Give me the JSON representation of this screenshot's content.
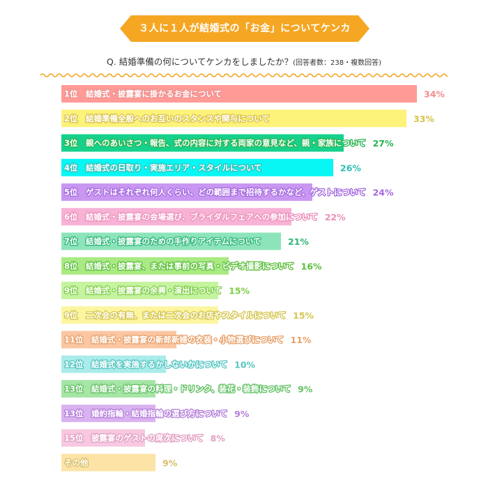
{
  "banner": {
    "text": "３人に１人が結婚式の「お金」についてケンカ"
  },
  "question": {
    "text": "Q. 結婚準備の何についてケンカをしましたか？",
    "note": "(回答者数：238・複数回答)"
  },
  "colors": {
    "banner": "#f5a623",
    "wavy_line": "#f5a623"
  },
  "chart_data": {
    "type": "bar",
    "orientation": "horizontal",
    "unit": "%",
    "xlim": [
      0,
      34
    ],
    "categories": [
      "1位　結婚式・披露宴に掛かるお金について",
      "2位　結婚準備全般へのお互いのスタンスや関与について",
      "3位　親へのあいさつ・報告、式の内容に対する両家の意見など、親・家族について",
      "4位　結婚式の日取り・実施エリア・スタイルについて",
      "5位　ゲストはそれぞれ何人くらい、どの範囲まで招待するかなど、ゲストについて",
      "6位　結婚式・披露宴の会場選び、ブライダルフェアへの参加について",
      "7位　結婚式・披露宴のための手作りアイテムについて",
      "8位　結婚式・披露宴、または事前の写真・ビデオ撮影について",
      "9位　結婚式・披露宴の余興・演出について",
      "9位　二次会の有無、または二次会のお店やスタイルについて",
      "11位　結婚式・披露宴の新郎新婦の衣装・小物選びについて",
      "12位　結婚式を実施するかしないかについて",
      "13位　結婚式・披露宴の料理・ドリンク、装花・装飾について",
      "13位　婚約指輪・結婚指輪の選び方について",
      "15位　披露宴のゲストの席次について",
      "その他"
    ],
    "values": [
      34,
      33,
      27,
      26,
      24,
      22,
      21,
      16,
      15,
      15,
      11,
      10,
      9,
      9,
      8,
      9
    ],
    "value_labels": [
      "34%",
      "33%",
      "27%",
      "26%",
      "24%",
      "22%",
      "21%",
      "16%",
      "15%",
      "15%",
      "11%",
      "10%",
      "9%",
      "9%",
      "8%",
      "9%"
    ],
    "bar_colors": [
      "#ff9a96",
      "#fdf27a",
      "#16d18c",
      "#08f6f4",
      "#c997f1",
      "#f7b2d5",
      "#8de4bb",
      "#a9ea82",
      "#c6f3a0",
      "#fdf5a0",
      "#fbc6a2",
      "#a9ecea",
      "#a5e5a5",
      "#d9b2f0",
      "#f7c8e0",
      "#fde3a6"
    ],
    "label_colors": [
      "#ef8f8d",
      "#d9c24a",
      "#27b34f",
      "#2cbfb6",
      "#a569e0",
      "#ec8fba",
      "#2fb679",
      "#5cbf3b",
      "#7fcf47",
      "#d4c54d",
      "#e8a06a",
      "#56c5c2",
      "#61c062",
      "#b47ed9",
      "#e29ec0",
      "#d8bd62"
    ],
    "xlabel": "",
    "ylabel": "",
    "grid": false,
    "legend": "none"
  }
}
